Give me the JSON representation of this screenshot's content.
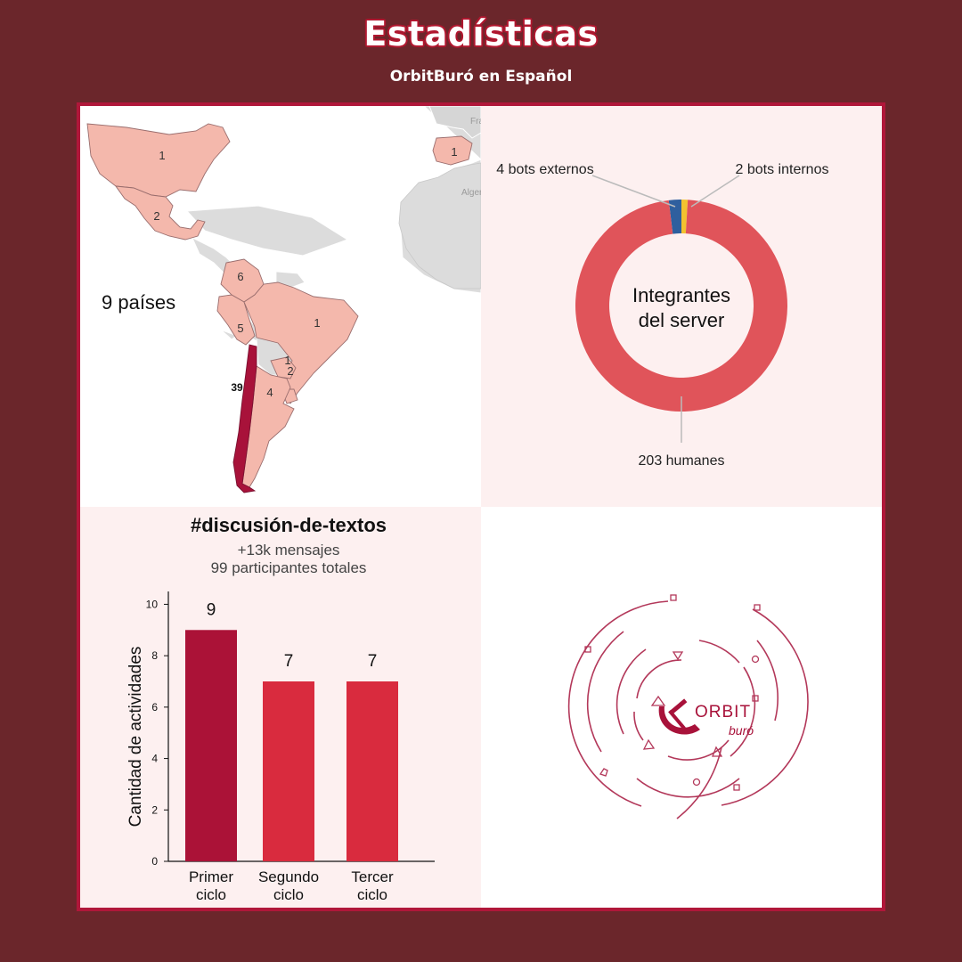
{
  "header": {
    "title": "Estadísticas",
    "subtitle": "OrbitBuró en Español"
  },
  "map": {
    "countries_label": "9 países",
    "highlight_color": "#a8123a",
    "fill_color": "#f4b8ac",
    "markers": [
      "1",
      "2",
      "6",
      "5",
      "1",
      "1",
      "2",
      "4",
      "39",
      "1"
    ],
    "background_labels": [
      "France",
      "Algeria"
    ]
  },
  "colors": {
    "background": "#6b262b",
    "frame": "#b0173a",
    "donut_humans": "#e0545a",
    "donut_external": "#2f5f9e",
    "donut_internal": "#f2c230",
    "bar_first": "#ab1237",
    "bar_rest": "#d92b3e"
  },
  "chart_data": [
    {
      "type": "pie",
      "center_label": "Integrantes del server",
      "center_lines": [
        "Integrantes",
        "del server"
      ],
      "labels": [
        "4 bots externos",
        "2 bots internos",
        "203 humanes"
      ],
      "slices": [
        {
          "name": "bots externos",
          "value": 4
        },
        {
          "name": "bots internos",
          "value": 2
        },
        {
          "name": "humanes",
          "value": 203
        }
      ]
    },
    {
      "type": "bar",
      "title": "#discusión-de-textos",
      "subtitle": [
        "+13k mensajes",
        "99 participantes totales"
      ],
      "categories": [
        "Primer ciclo",
        "Segundo ciclo",
        "Tercer ciclo"
      ],
      "category_lines": [
        [
          "Primer",
          "ciclo"
        ],
        [
          "Segundo",
          "ciclo"
        ],
        [
          "Tercer",
          "ciclo"
        ]
      ],
      "values": [
        9,
        7,
        7
      ],
      "value_labels": [
        "9",
        "7",
        "7"
      ],
      "ylabel": "Cantidad de actividades",
      "yticks": [
        "0",
        "2",
        "4",
        "6",
        "8",
        "10"
      ],
      "ylim": [
        0,
        10.5
      ],
      "grid": false
    }
  ],
  "logo": {
    "word1": "ORBIT",
    "word2": "buró"
  }
}
